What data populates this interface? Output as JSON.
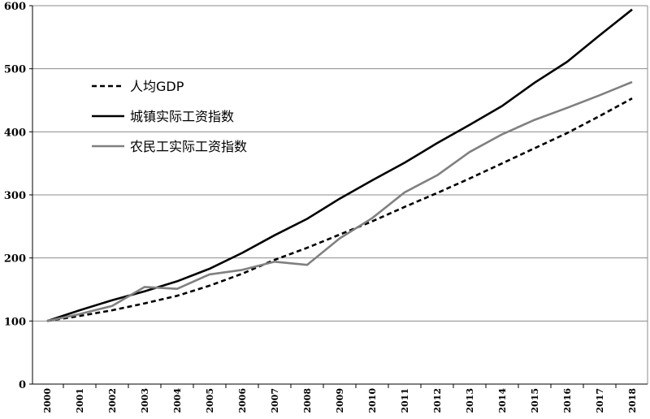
{
  "chart_data": {
    "type": "line",
    "title": "",
    "xlabel": "",
    "ylabel": "",
    "ylim": [
      0,
      600
    ],
    "yticks": [
      0,
      100,
      200,
      300,
      400,
      500,
      600
    ],
    "grid": true,
    "legend_position": "top-left",
    "x": [
      "2000",
      "2001",
      "2002",
      "2003",
      "2004",
      "2005",
      "2006",
      "2007",
      "2008",
      "2009",
      "2010",
      "2011",
      "2012",
      "2013",
      "2014",
      "2015",
      "2016",
      "2017",
      "2018"
    ],
    "series": [
      {
        "name": "人均GDP",
        "style": "dashed",
        "color": "#000000",
        "values": [
          100,
          108,
          117,
          128,
          140,
          156,
          175,
          197,
          216,
          237,
          258,
          281,
          303,
          326,
          350,
          374,
          398,
          425,
          453
        ]
      },
      {
        "name": "城镇实际工资指数",
        "style": "solid",
        "color": "#000000",
        "values": [
          100,
          117,
          133,
          147,
          163,
          183,
          208,
          236,
          262,
          294,
          323,
          351,
          382,
          411,
          441,
          478,
          511,
          553,
          594
        ]
      },
      {
        "name": "农民工实际工资指数",
        "style": "solid",
        "color": "#808080",
        "values": [
          100,
          111,
          124,
          154,
          151,
          174,
          181,
          194,
          189,
          231,
          263,
          304,
          331,
          368,
          396,
          419,
          438,
          458,
          479
        ]
      }
    ]
  }
}
